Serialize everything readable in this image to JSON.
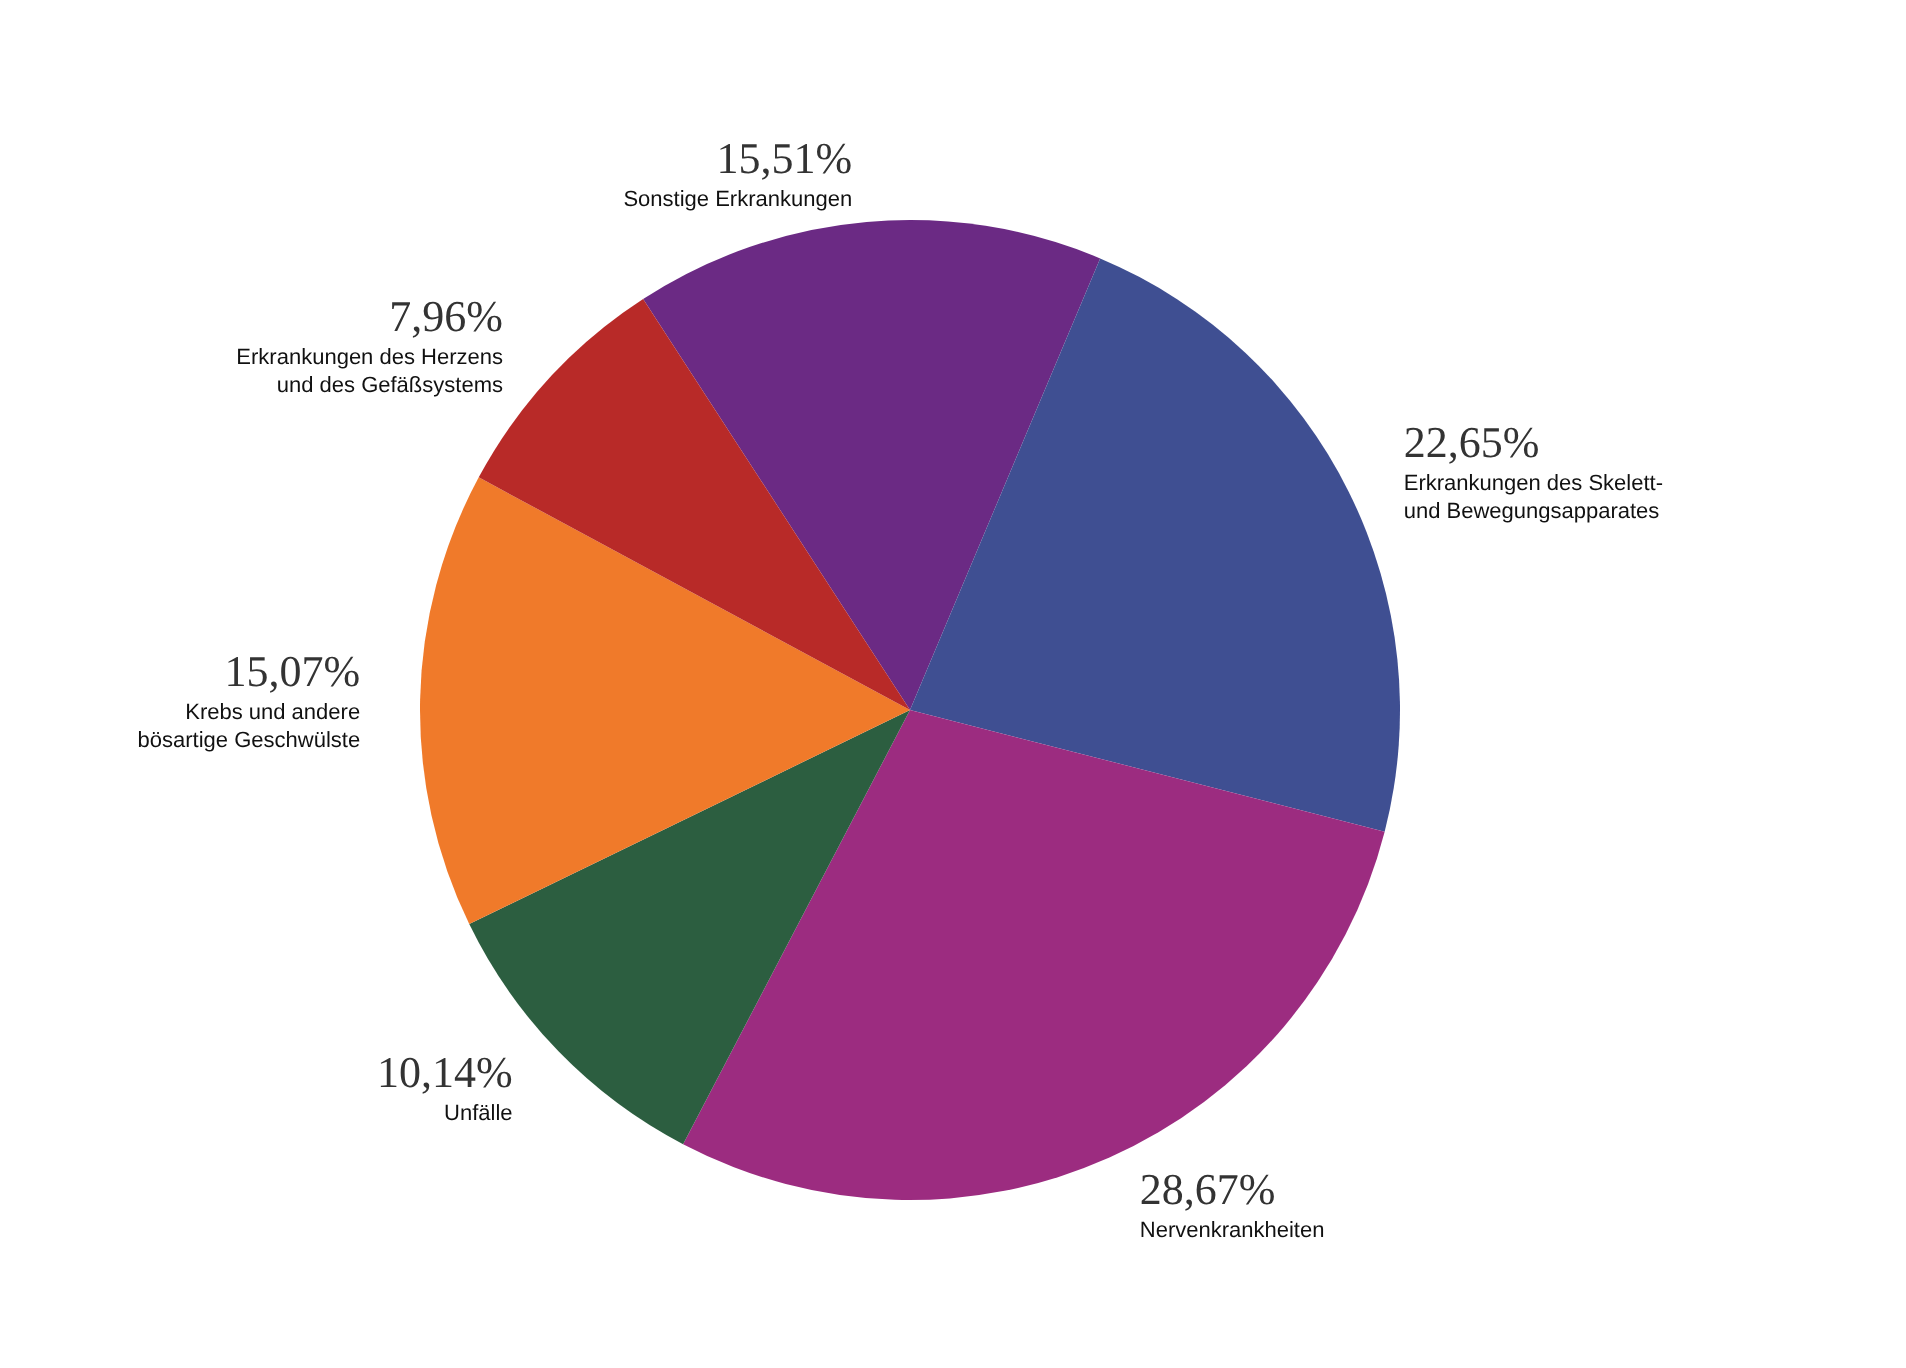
{
  "chart_data": {
    "type": "pie",
    "categories": [
      "Sonstige Erkrankungen",
      "Erkrankungen des Skelett-\nund Bewegungsapparates",
      "Nervenkrankheiten",
      "Unfälle",
      "Krebs und andere\nbösartige Geschwülste",
      "Erkrankungen des Herzens\nund des Gefäßsystems"
    ],
    "values": [
      15.51,
      22.65,
      28.67,
      10.14,
      15.07,
      7.96
    ],
    "colors": [
      "#6b2a84",
      "#3f4f92",
      "#9c2c80",
      "#2c5e40",
      "#f07a2a",
      "#b82a28"
    ],
    "value_labels": [
      "15,51%",
      "22,65%",
      "28,67%",
      "10,14%",
      "15,07%",
      "7,96%"
    ],
    "legend": false
  }
}
